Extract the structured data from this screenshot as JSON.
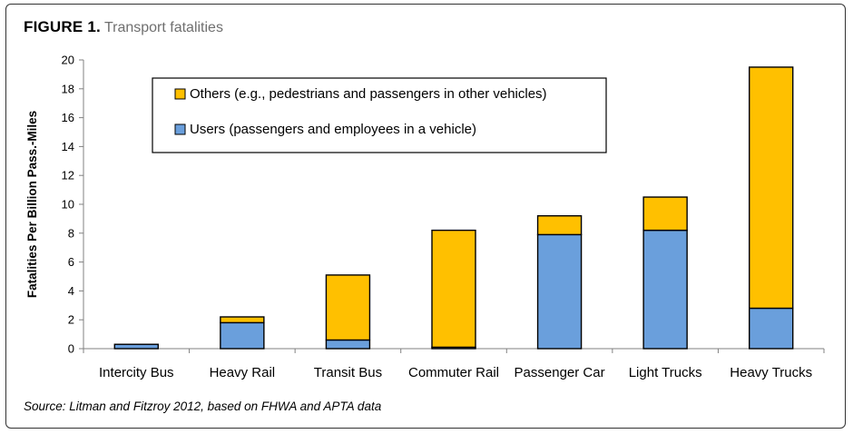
{
  "figure": {
    "label": "FIGURE 1.",
    "caption": "Transport fatalities",
    "source": "Source: Litman and Fitzroy 2012, based on FHWA and APTA data"
  },
  "chart_data": {
    "type": "bar",
    "stacked": true,
    "categories": [
      "Intercity Bus",
      "Heavy Rail",
      "Transit Bus",
      "Commuter Rail",
      "Passenger Car",
      "Light Trucks",
      "Heavy Trucks"
    ],
    "series": [
      {
        "name": "Users (passengers and employees in a vehicle)",
        "color": "#6a9fdc",
        "values": [
          0.3,
          1.8,
          0.6,
          0.1,
          7.9,
          8.2,
          2.8
        ]
      },
      {
        "name": "Others (e.g., pedestrians and passengers in other vehicles)",
        "color": "#ffc000",
        "values": [
          0.0,
          0.4,
          4.5,
          8.1,
          1.3,
          2.3,
          16.7
        ]
      }
    ],
    "ylabel": "Fatalities Per Billion Pass.-Miles",
    "xlabel": "",
    "ylim": [
      0,
      20
    ],
    "yticks": [
      0,
      2,
      4,
      6,
      8,
      10,
      12,
      14,
      16,
      18,
      20
    ],
    "grid": false,
    "legend": {
      "position": "top-left",
      "order": [
        1,
        0
      ]
    }
  }
}
